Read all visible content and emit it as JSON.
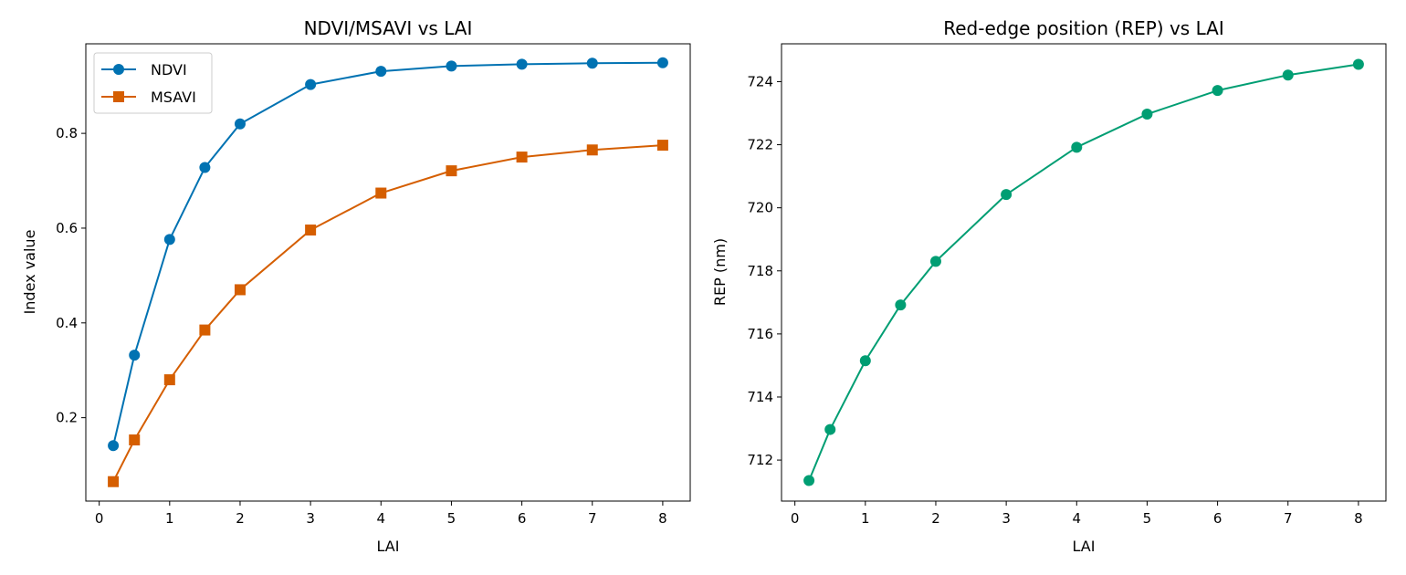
{
  "chart_data": [
    {
      "type": "line",
      "title": "NDVI/MSAVI vs LAI",
      "xlabel": "LAI",
      "ylabel": "Index value",
      "xlim": [
        -0.19,
        8.39
      ],
      "ylim": [
        0.024,
        0.989
      ],
      "xticks": [
        0,
        1,
        2,
        3,
        4,
        5,
        6,
        7,
        8
      ],
      "yticks": [
        0.2,
        0.4,
        0.6,
        0.8
      ],
      "ytick_labels": [
        "0.2",
        "0.4",
        "0.6",
        "0.8"
      ],
      "grid": false,
      "legend": "upper-left",
      "x": [
        0.2,
        0.5,
        1,
        1.5,
        2,
        3,
        4,
        5,
        6,
        7,
        8
      ],
      "series": [
        {
          "name": "NDVI",
          "color": "#0072b2",
          "marker": "circle",
          "values": [
            0.141,
            0.332,
            0.576,
            0.728,
            0.82,
            0.903,
            0.931,
            0.942,
            0.946,
            0.948,
            0.949
          ]
        },
        {
          "name": "MSAVI",
          "color": "#d55e00",
          "marker": "square",
          "values": [
            0.065,
            0.153,
            0.28,
            0.385,
            0.47,
            0.596,
            0.674,
            0.721,
            0.75,
            0.765,
            0.775
          ]
        }
      ]
    },
    {
      "type": "line",
      "title": "Red-edge position (REP) vs LAI",
      "xlabel": "LAI",
      "ylabel": "REP (nm)",
      "xlim": [
        -0.19,
        8.39
      ],
      "ylim": [
        710.7,
        725.2
      ],
      "xticks": [
        0,
        1,
        2,
        3,
        4,
        5,
        6,
        7,
        8
      ],
      "yticks": [
        712,
        714,
        716,
        718,
        720,
        722,
        724
      ],
      "ytick_labels": [
        "712",
        "714",
        "716",
        "718",
        "720",
        "722",
        "724"
      ],
      "grid": false,
      "legend": "none",
      "x": [
        0.2,
        0.5,
        1,
        1.5,
        2,
        3,
        4,
        5,
        6,
        7,
        8
      ],
      "series": [
        {
          "color": "#009e73",
          "marker": "circle",
          "values": [
            711.35,
            712.97,
            715.15,
            716.92,
            718.3,
            720.42,
            721.92,
            722.97,
            723.72,
            724.21,
            724.55
          ]
        }
      ]
    }
  ]
}
